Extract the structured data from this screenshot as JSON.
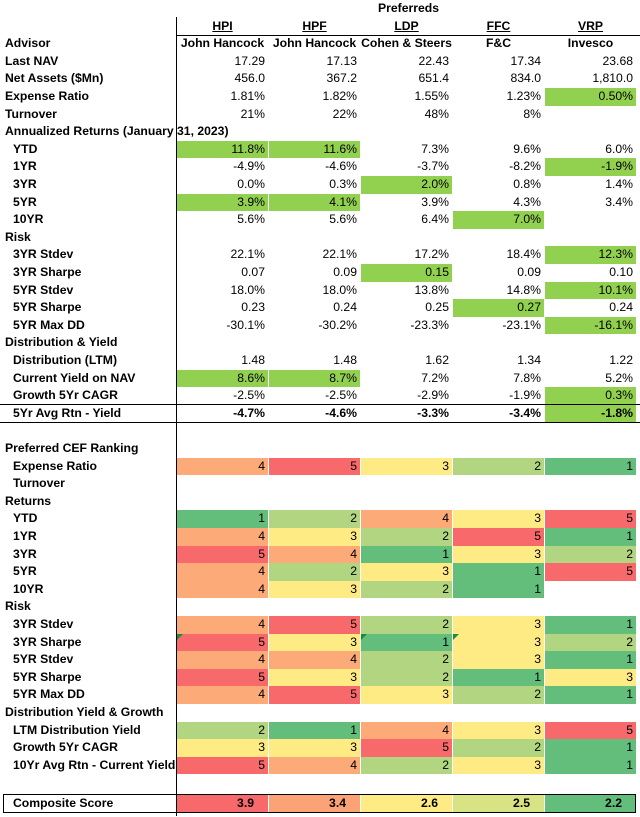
{
  "chart_data": {
    "type": "table",
    "group_header": "Preferreds",
    "tickers": [
      "HPI",
      "HPF",
      "LDP",
      "FFC",
      "VRP"
    ],
    "colors": {
      "highlight": "#92d050",
      "r1": "#63be7b",
      "r2": "#b1d580",
      "r3": "#ffeb84",
      "r4": "#fcaa78",
      "r5": "#f8696b"
    },
    "rows": [
      {
        "kind": "text-row",
        "label": "Advisor",
        "bold_values": true,
        "center": true,
        "values": [
          "John Hancock",
          "John Hancock",
          "Cohen & Steers",
          "F&C",
          "Invesco"
        ]
      },
      {
        "kind": "data",
        "label": "Last NAV",
        "values": [
          "17.29",
          "17.13",
          "22.43",
          "17.34",
          "23.68"
        ]
      },
      {
        "kind": "data",
        "label": "Net Assets ($Mn)",
        "values": [
          "456.0",
          "367.2",
          "651.4",
          "834.0",
          "1,810.0"
        ]
      },
      {
        "kind": "data",
        "label": "Expense Ratio",
        "values": [
          "1.81%",
          "1.82%",
          "1.55%",
          "1.23%",
          "0.50%"
        ],
        "highlight": [
          4
        ]
      },
      {
        "kind": "data",
        "label": "Turnover",
        "values": [
          "21%",
          "22%",
          "48%",
          "8%",
          ""
        ]
      },
      {
        "kind": "section",
        "label": "Annualized Returns (January 31, 2023)"
      },
      {
        "kind": "data",
        "sub": true,
        "label": "YTD",
        "values": [
          "11.8%",
          "11.6%",
          "7.3%",
          "9.6%",
          "6.0%"
        ],
        "highlight": [
          0,
          1
        ]
      },
      {
        "kind": "data",
        "sub": true,
        "label": "1YR",
        "values": [
          "-4.9%",
          "-4.6%",
          "-3.7%",
          "-8.2%",
          "-1.9%"
        ],
        "highlight": [
          4
        ]
      },
      {
        "kind": "data",
        "sub": true,
        "label": "3YR",
        "values": [
          "0.0%",
          "0.3%",
          "2.0%",
          "0.8%",
          "1.4%"
        ],
        "highlight": [
          2
        ]
      },
      {
        "kind": "data",
        "sub": true,
        "label": "5YR",
        "values": [
          "3.9%",
          "4.1%",
          "3.9%",
          "4.3%",
          "3.4%"
        ],
        "highlight": [
          0,
          1
        ]
      },
      {
        "kind": "data",
        "sub": true,
        "label": "10YR",
        "values": [
          "5.6%",
          "5.6%",
          "6.4%",
          "7.0%",
          ""
        ],
        "highlight": [
          3
        ]
      },
      {
        "kind": "section",
        "label": "Risk"
      },
      {
        "kind": "data",
        "sub": true,
        "label": "3YR Stdev",
        "values": [
          "22.1%",
          "22.1%",
          "17.2%",
          "18.4%",
          "12.3%"
        ],
        "highlight": [
          4
        ]
      },
      {
        "kind": "data",
        "sub": true,
        "label": "3YR Sharpe",
        "values": [
          "0.07",
          "0.09",
          "0.15",
          "0.09",
          "0.10"
        ],
        "highlight": [
          2
        ]
      },
      {
        "kind": "data",
        "sub": true,
        "label": "5YR Stdev",
        "values": [
          "18.0%",
          "18.0%",
          "13.8%",
          "14.8%",
          "10.1%"
        ],
        "highlight": [
          4
        ]
      },
      {
        "kind": "data",
        "sub": true,
        "label": "5YR Sharpe",
        "values": [
          "0.23",
          "0.24",
          "0.25",
          "0.27",
          "0.24"
        ],
        "highlight": [
          3
        ]
      },
      {
        "kind": "data",
        "sub": true,
        "label": "5YR Max DD",
        "values": [
          "-30.1%",
          "-30.2%",
          "-23.3%",
          "-23.1%",
          "-16.1%"
        ],
        "highlight": [
          4
        ]
      },
      {
        "kind": "section",
        "label": "Distribution & Yield"
      },
      {
        "kind": "data",
        "sub": true,
        "label": "Distribution (LTM)",
        "values": [
          "1.48",
          "1.48",
          "1.62",
          "1.34",
          "1.22"
        ]
      },
      {
        "kind": "data",
        "sub": true,
        "label": "Current Yield on NAV",
        "values": [
          "8.6%",
          "8.7%",
          "7.2%",
          "7.8%",
          "5.2%"
        ],
        "highlight": [
          0,
          1
        ]
      },
      {
        "kind": "data",
        "sub": true,
        "label": "Growth 5Yr CAGR",
        "values": [
          "-2.5%",
          "-2.5%",
          "-2.9%",
          "-1.9%",
          "0.3%"
        ],
        "highlight": [
          4
        ]
      },
      {
        "kind": "data",
        "sub": true,
        "label": "5Yr Avg Rtn - Yield",
        "values": [
          "-4.7%",
          "-4.6%",
          "-3.3%",
          "-3.4%",
          "-1.8%"
        ],
        "highlight": [
          4
        ],
        "bold_values": true,
        "top_rule": true
      },
      {
        "kind": "blank"
      },
      {
        "kind": "section",
        "label": "Preferred CEF Ranking"
      },
      {
        "kind": "rank",
        "sub": true,
        "label": "Expense Ratio",
        "values": [
          4,
          5,
          3,
          2,
          1
        ]
      },
      {
        "kind": "rank",
        "sub": true,
        "label": "Turnover",
        "values": [
          null,
          null,
          null,
          null,
          null
        ]
      },
      {
        "kind": "section",
        "label": "Returns"
      },
      {
        "kind": "rank",
        "sub": true,
        "label": "YTD",
        "values": [
          1,
          2,
          4,
          3,
          5
        ]
      },
      {
        "kind": "rank",
        "sub": true,
        "label": "1YR",
        "values": [
          4,
          3,
          2,
          5,
          1
        ]
      },
      {
        "kind": "rank",
        "sub": true,
        "label": "3YR",
        "values": [
          5,
          4,
          1,
          3,
          2
        ]
      },
      {
        "kind": "rank",
        "sub": true,
        "label": "5YR",
        "values": [
          4,
          2,
          3,
          1,
          5
        ]
      },
      {
        "kind": "rank",
        "sub": true,
        "label": "10YR",
        "values": [
          4,
          3,
          2,
          1,
          null
        ]
      },
      {
        "kind": "section",
        "label": "Risk"
      },
      {
        "kind": "rank",
        "sub": true,
        "label": "3YR Stdev",
        "values": [
          4,
          5,
          2,
          3,
          1
        ]
      },
      {
        "kind": "rank",
        "sub": true,
        "label": "3YR Sharpe",
        "values": [
          5,
          3,
          1,
          3,
          2
        ],
        "markers": [
          0,
          2,
          3
        ]
      },
      {
        "kind": "rank",
        "sub": true,
        "label": "5YR Stdev",
        "values": [
          4,
          4,
          2,
          3,
          1
        ]
      },
      {
        "kind": "rank",
        "sub": true,
        "label": "5YR Sharpe",
        "values": [
          5,
          3,
          2,
          1,
          3
        ]
      },
      {
        "kind": "rank",
        "sub": true,
        "label": "5YR Max DD",
        "values": [
          4,
          5,
          3,
          2,
          1
        ]
      },
      {
        "kind": "section",
        "label": "Distribution Yield & Growth"
      },
      {
        "kind": "rank",
        "sub": true,
        "label": "LTM Distribution Yield",
        "values": [
          2,
          1,
          4,
          3,
          5
        ]
      },
      {
        "kind": "rank",
        "sub": true,
        "label": "Growth 5Yr CAGR",
        "values": [
          3,
          3,
          5,
          2,
          1
        ]
      },
      {
        "kind": "rank",
        "sub": true,
        "label": "10Yr Avg Rtn - Current Yield",
        "values": [
          5,
          4,
          2,
          3,
          1
        ]
      },
      {
        "kind": "blank"
      },
      {
        "kind": "score",
        "label": "Composite Score",
        "values": [
          "3.9",
          "3.4",
          "2.6",
          "2.5",
          "2.2"
        ],
        "colors": [
          "#f8696b",
          "#fba276",
          "#ffeb84",
          "#d8e383",
          "#63be7b"
        ]
      }
    ]
  }
}
